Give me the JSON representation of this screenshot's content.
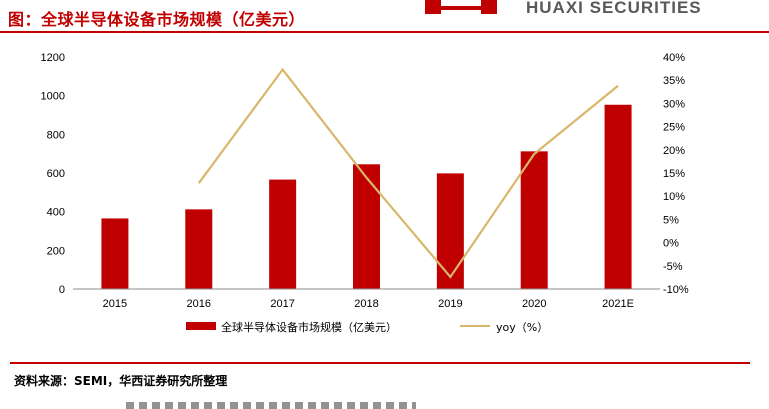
{
  "header": {
    "title": "图：全球半导体设备市场规模（亿美元）",
    "brand": "HUAXI SECURITIES",
    "accent_color": "#c00000"
  },
  "chart_data": {
    "type": "bar",
    "categories": [
      "2015",
      "2016",
      "2017",
      "2018",
      "2019",
      "2020",
      "2021E"
    ],
    "series": [
      {
        "name": "全球半导体设备市场规模（亿美元）",
        "type": "bar",
        "axis": "left",
        "values": [
          365,
          412,
          566,
          645,
          598,
          712,
          953
        ],
        "color": "#c00000"
      },
      {
        "name": "yoy（%）",
        "type": "line",
        "axis": "right",
        "values": [
          null,
          12.8,
          37.3,
          14.0,
          -7.4,
          19.1,
          33.8
        ],
        "color": "#d9b76a"
      }
    ],
    "y_left": {
      "min": 0,
      "max": 1200,
      "ticks": [
        0,
        200,
        400,
        600,
        800,
        1000,
        1200
      ]
    },
    "y_right": {
      "min": -10,
      "max": 40,
      "ticks": [
        "-10%",
        "-5%",
        "0%",
        "5%",
        "10%",
        "15%",
        "20%",
        "25%",
        "30%",
        "35%",
        "40%"
      ]
    },
    "grid": false,
    "legend_position": "bottom"
  },
  "footer": {
    "source": "资料来源：SEMI，华西证券研究所整理"
  }
}
